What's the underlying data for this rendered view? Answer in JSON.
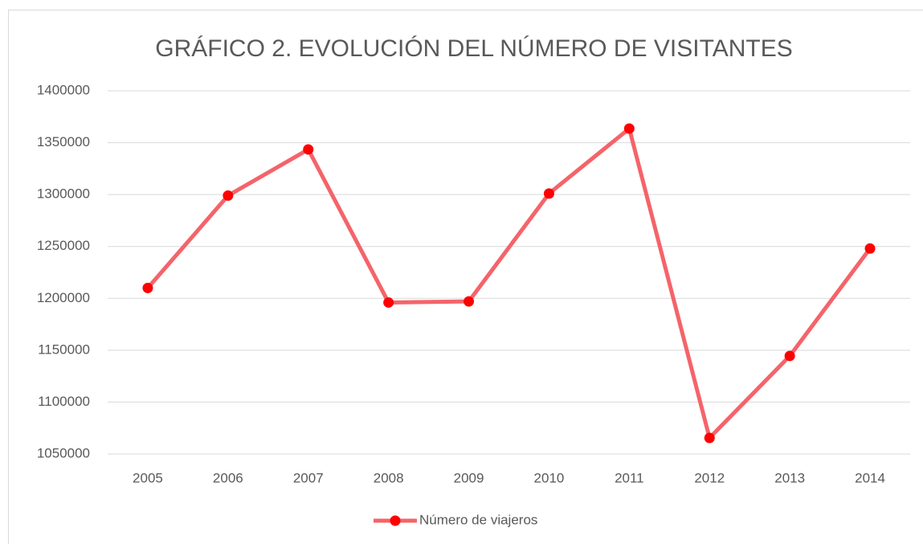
{
  "chart_data": {
    "type": "line",
    "title": "GRÁFICO 2. EVOLUCIÓN DEL NÚMERO DE VISITANTES",
    "categories": [
      "2005",
      "2006",
      "2007",
      "2008",
      "2009",
      "2010",
      "2011",
      "2012",
      "2013",
      "2014"
    ],
    "series": [
      {
        "name": "Número de viajeros",
        "color": "#f4646a",
        "marker_color": "#ff0000",
        "values": [
          1210000,
          1299000,
          1343500,
          1196000,
          1197000,
          1301000,
          1363600,
          1065500,
          1144500,
          1248000
        ]
      }
    ],
    "ylim": [
      1050000,
      1400000
    ],
    "yticks": [
      1050000,
      1100000,
      1150000,
      1200000,
      1250000,
      1300000,
      1350000,
      1400000
    ],
    "grid": true,
    "legend": "bottom"
  }
}
